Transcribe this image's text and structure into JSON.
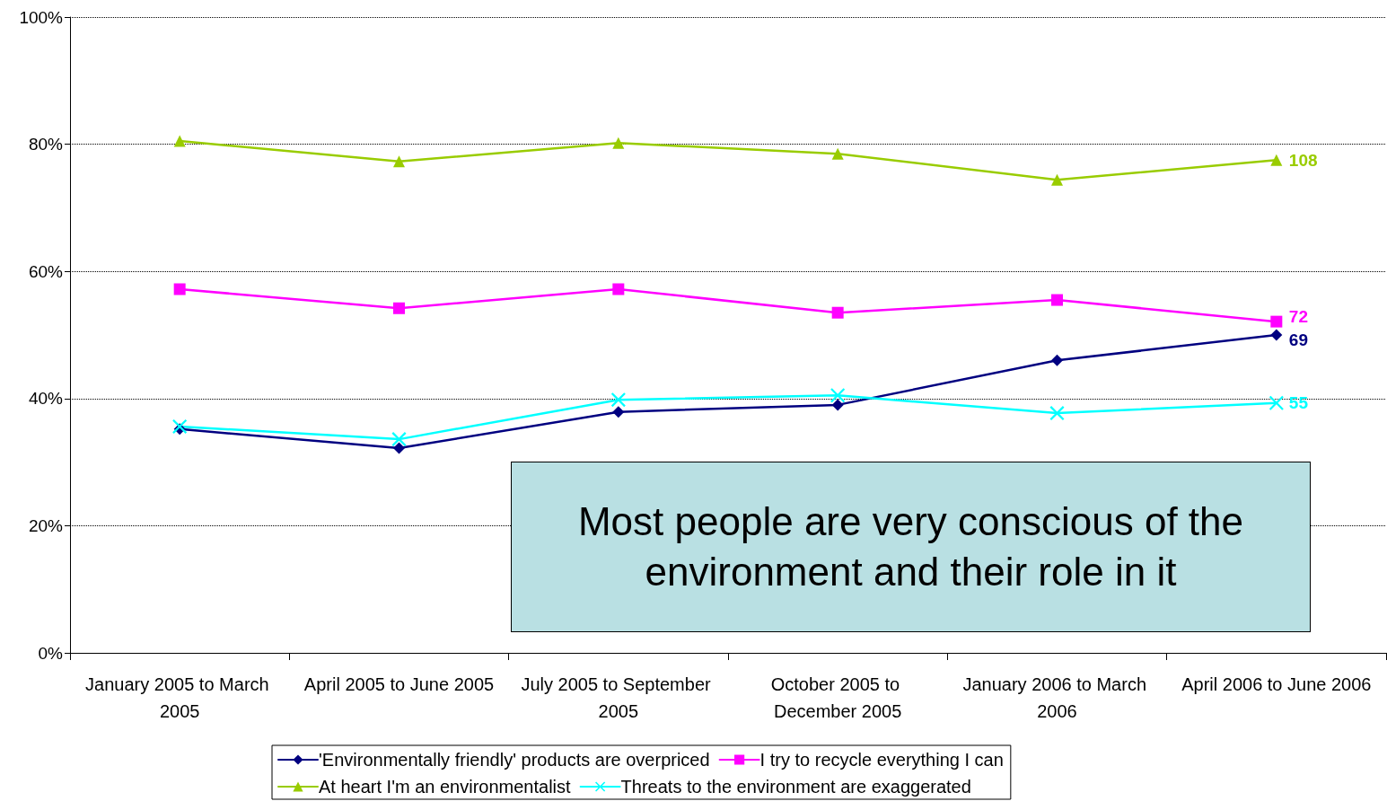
{
  "chart_data": {
    "type": "line",
    "categories": [
      "January 2005 to March 2005",
      "April 2005 to June 2005",
      "July 2005 to September 2005",
      "October 2005 to December 2005",
      "January 2006 to March 2006",
      "April 2006 to June 2006"
    ],
    "series": [
      {
        "name": "'Environmentally friendly' products are overpriced",
        "color": "#000080",
        "marker": "diamond",
        "values": [
          35.2,
          32.2,
          37.9,
          39.0,
          46.0,
          50.0
        ]
      },
      {
        "name": "I try to recycle everything I can",
        "color": "#ff00ff",
        "marker": "square",
        "values": [
          57.2,
          54.2,
          57.2,
          53.5,
          55.5,
          52.1
        ]
      },
      {
        "name": "At heart I'm an environmentalist",
        "color": "#99cc00",
        "marker": "triangle",
        "values": [
          80.5,
          77.3,
          80.2,
          78.5,
          74.4,
          77.5
        ]
      },
      {
        "name": "Threats to the environment are exaggerated",
        "color": "#00ffff",
        "marker": "cross",
        "values": [
          35.6,
          33.6,
          39.8,
          40.5,
          37.7,
          39.3
        ]
      }
    ],
    "ylim": [
      0,
      100
    ],
    "yticks": [
      {
        "value": 0,
        "label": "0%"
      },
      {
        "value": 20,
        "label": "20%"
      },
      {
        "value": 40,
        "label": "40%"
      },
      {
        "value": 60,
        "label": "60%"
      },
      {
        "value": 80,
        "label": "80%"
      },
      {
        "value": 100,
        "label": "100%"
      }
    ],
    "grid": "y",
    "legend": "bottom",
    "line_style": "solid",
    "annotations": [
      "Most people are very conscious of the environment and their role in it",
      {
        "text": "69",
        "x": "April 2006 to June 2006",
        "y": 50.0
      },
      {
        "text": "72",
        "x": "April 2006 to June 2006",
        "y": 52.1
      },
      {
        "text": "108",
        "x": "April 2006 to June 2006",
        "y": 77.5
      },
      {
        "text": "55",
        "x": "April 2006 to June 2006",
        "y": 39.3
      }
    ]
  }
}
